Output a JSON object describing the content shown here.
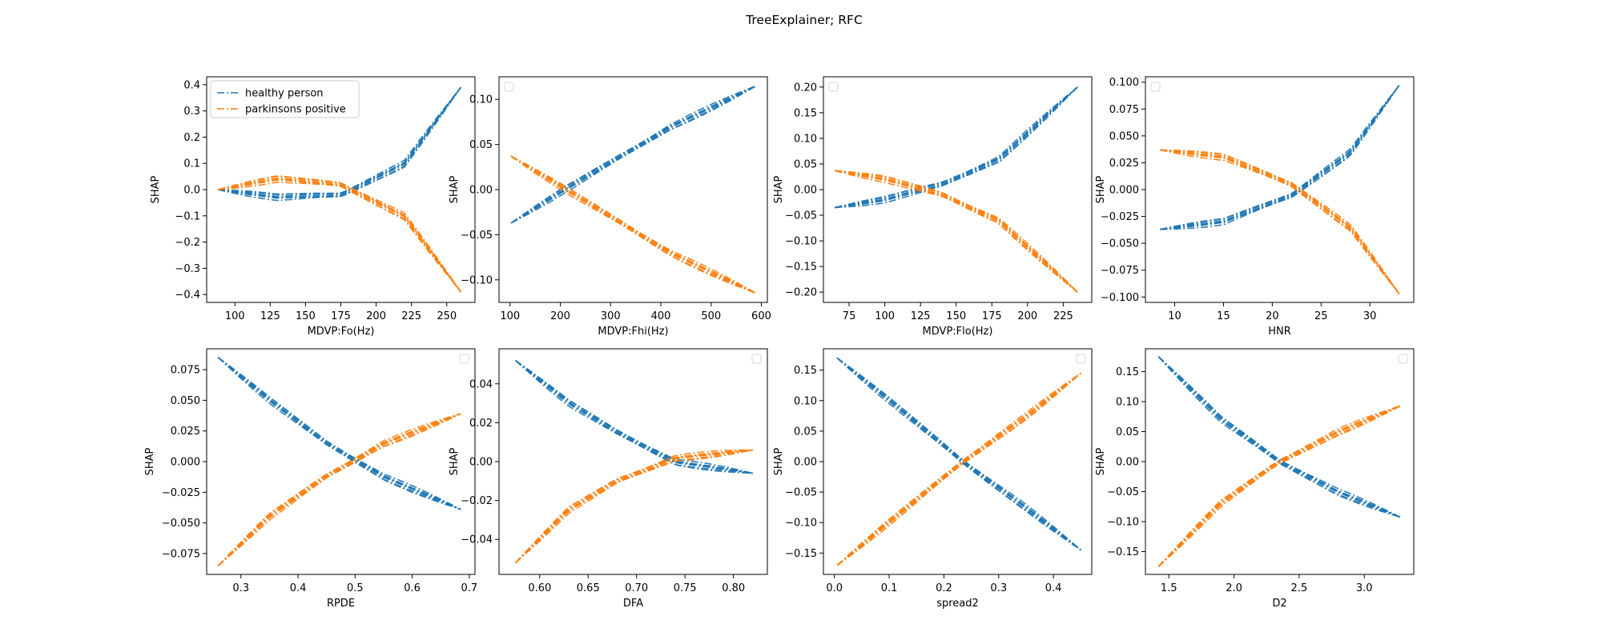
{
  "figure": {
    "suptitle": "TreeExplainer; RFC"
  },
  "legend": {
    "entries": [
      "healthy person",
      "parkinsons positive"
    ]
  },
  "colors": {
    "healthy": "#1f77b4",
    "parkinsons": "#ff7f0e"
  },
  "chart_data": [
    {
      "type": "line",
      "title": "",
      "xlabel": "MDVP:Fo(Hz)",
      "ylabel": "SHAP",
      "xlim": [
        80,
        270
      ],
      "ylim": [
        -0.43,
        0.43
      ],
      "xticks": [
        100,
        125,
        150,
        175,
        200,
        225,
        250
      ],
      "yticks": [
        -0.4,
        -0.3,
        -0.2,
        -0.1,
        0.0,
        0.1,
        0.2,
        0.3,
        0.4
      ],
      "legend": "upper-left",
      "series": [
        {
          "name": "healthy person",
          "x": [
            88,
            130,
            175,
            220,
            260
          ],
          "y": [
            0.0,
            -0.03,
            -0.02,
            0.1,
            0.39
          ]
        },
        {
          "name": "parkinsons positive",
          "x": [
            88,
            130,
            175,
            220,
            260
          ],
          "y": [
            0.0,
            0.04,
            0.02,
            -0.1,
            -0.39
          ]
        }
      ]
    },
    {
      "type": "line",
      "title": "",
      "xlabel": "MDVP:Fhi(Hz)",
      "ylabel": "SHAP",
      "xlim": [
        78,
        612
      ],
      "ylim": [
        -0.125,
        0.125
      ],
      "xticks": [
        100,
        200,
        300,
        400,
        500,
        600
      ],
      "yticks": [
        -0.1,
        -0.05,
        0.0,
        0.05,
        0.1
      ],
      "legend": "empty",
      "series": [
        {
          "name": "healthy person",
          "x": [
            102,
            210,
            300,
            420,
            590
          ],
          "y": [
            -0.037,
            0.0,
            0.03,
            0.07,
            0.115
          ]
        },
        {
          "name": "parkinsons positive",
          "x": [
            102,
            210,
            300,
            420,
            590
          ],
          "y": [
            0.037,
            0.0,
            -0.03,
            -0.07,
            -0.115
          ]
        }
      ]
    },
    {
      "type": "line",
      "title": "",
      "xlabel": "MDVP:Flo(Hz)",
      "ylabel": "SHAP",
      "xlim": [
        57,
        245
      ],
      "ylim": [
        -0.22,
        0.22
      ],
      "xticks": [
        75,
        100,
        125,
        150,
        175,
        200,
        225
      ],
      "yticks": [
        -0.2,
        -0.15,
        -0.1,
        -0.05,
        0.0,
        0.05,
        0.1,
        0.15,
        0.2
      ],
      "legend": "empty",
      "series": [
        {
          "name": "healthy person",
          "x": [
            65,
            100,
            140,
            180,
            235
          ],
          "y": [
            -0.035,
            -0.02,
            0.01,
            0.06,
            0.2
          ]
        },
        {
          "name": "parkinsons positive",
          "x": [
            65,
            100,
            140,
            180,
            235
          ],
          "y": [
            0.037,
            0.02,
            -0.01,
            -0.06,
            -0.2
          ]
        }
      ]
    },
    {
      "type": "line",
      "title": "",
      "xlabel": "HNR",
      "ylabel": "SHAP",
      "xlim": [
        7,
        34.5
      ],
      "ylim": [
        -0.105,
        0.105
      ],
      "xticks": [
        10,
        15,
        20,
        25,
        30
      ],
      "yticks": [
        -0.1,
        -0.075,
        -0.05,
        -0.025,
        0.0,
        0.025,
        0.05,
        0.075,
        0.1
      ],
      "legend": "empty",
      "series": [
        {
          "name": "healthy person",
          "x": [
            8.5,
            15,
            22,
            28,
            33
          ],
          "y": [
            -0.037,
            -0.03,
            -0.005,
            0.035,
            0.097
          ]
        },
        {
          "name": "parkinsons positive",
          "x": [
            8.5,
            15,
            22,
            28,
            33
          ],
          "y": [
            0.037,
            0.03,
            0.005,
            -0.035,
            -0.097
          ]
        }
      ]
    },
    {
      "type": "line",
      "title": "",
      "xlabel": "RPDE",
      "ylabel": "SHAP",
      "xlim": [
        0.24,
        0.71
      ],
      "ylim": [
        -0.092,
        0.092
      ],
      "xticks": [
        0.3,
        0.4,
        0.5,
        0.6,
        0.7
      ],
      "yticks": [
        -0.075,
        -0.05,
        -0.025,
        0.0,
        0.025,
        0.05,
        0.075
      ],
      "legend": "empty",
      "series": [
        {
          "name": "healthy person",
          "x": [
            0.26,
            0.35,
            0.45,
            0.55,
            0.685
          ],
          "y": [
            0.085,
            0.05,
            0.015,
            -0.012,
            -0.039
          ]
        },
        {
          "name": "parkinsons positive",
          "x": [
            0.26,
            0.35,
            0.45,
            0.55,
            0.685
          ],
          "y": [
            -0.085,
            -0.045,
            -0.012,
            0.015,
            0.039
          ]
        }
      ]
    },
    {
      "type": "line",
      "title": "",
      "xlabel": "DFA",
      "ylabel": "SHAP",
      "xlim": [
        0.558,
        0.835
      ],
      "ylim": [
        -0.058,
        0.058
      ],
      "xticks": [
        0.6,
        0.65,
        0.7,
        0.75,
        0.8
      ],
      "yticks": [
        -0.04,
        -0.02,
        0.0,
        0.02,
        0.04
      ],
      "legend": "empty",
      "series": [
        {
          "name": "healthy person",
          "x": [
            0.575,
            0.63,
            0.68,
            0.74,
            0.82
          ],
          "y": [
            0.052,
            0.03,
            0.015,
            0.0,
            -0.006
          ]
        },
        {
          "name": "parkinsons positive",
          "x": [
            0.575,
            0.63,
            0.68,
            0.74,
            0.82
          ],
          "y": [
            -0.052,
            -0.025,
            -0.01,
            0.002,
            0.006
          ]
        }
      ]
    },
    {
      "type": "line",
      "title": "",
      "xlabel": "spread2",
      "ylabel": "SHAP",
      "xlim": [
        -0.02,
        0.47
      ],
      "ylim": [
        -0.185,
        0.185
      ],
      "xticks": [
        0.0,
        0.1,
        0.2,
        0.3,
        0.4
      ],
      "yticks": [
        -0.15,
        -0.1,
        -0.05,
        0.0,
        0.05,
        0.1,
        0.15
      ],
      "legend": "empty",
      "series": [
        {
          "name": "healthy person",
          "x": [
            0.005,
            0.1,
            0.235,
            0.35,
            0.45
          ],
          "y": [
            0.17,
            0.1,
            0.0,
            -0.075,
            -0.145
          ]
        },
        {
          "name": "parkinsons positive",
          "x": [
            0.005,
            0.1,
            0.235,
            0.35,
            0.45
          ],
          "y": [
            -0.17,
            -0.1,
            0.0,
            0.075,
            0.145
          ]
        }
      ]
    },
    {
      "type": "line",
      "title": "",
      "xlabel": "D2",
      "ylabel": "SHAP",
      "xlim": [
        1.32,
        3.38
      ],
      "ylim": [
        -0.188,
        0.188
      ],
      "xticks": [
        1.5,
        2.0,
        2.5,
        3.0
      ],
      "yticks": [
        -0.15,
        -0.1,
        -0.05,
        0.0,
        0.05,
        0.1,
        0.15
      ],
      "legend": "empty",
      "series": [
        {
          "name": "healthy person",
          "x": [
            1.42,
            1.9,
            2.35,
            2.8,
            3.28
          ],
          "y": [
            0.175,
            0.07,
            0.0,
            -0.05,
            -0.093
          ]
        },
        {
          "name": "parkinsons positive",
          "x": [
            1.42,
            1.9,
            2.35,
            2.8,
            3.28
          ],
          "y": [
            -0.175,
            -0.07,
            0.0,
            0.05,
            0.093
          ]
        }
      ]
    }
  ]
}
